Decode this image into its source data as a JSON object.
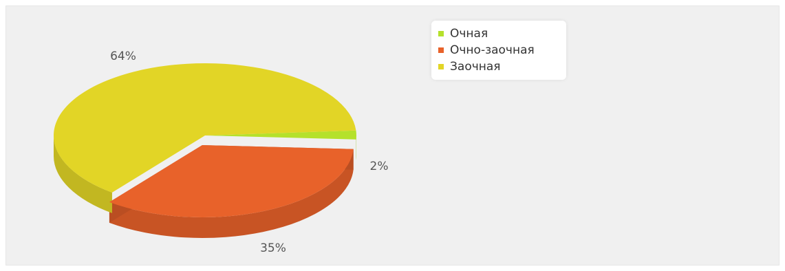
{
  "chart_data": {
    "type": "pie",
    "title": "",
    "three_d": true,
    "slices": [
      {
        "name": "Очная",
        "value": 2,
        "label": "2%",
        "color": "#b5e12b"
      },
      {
        "name": "Очно-заочная",
        "value": 35,
        "label": "35%",
        "color": "#e8622a"
      },
      {
        "name": "Заочная",
        "value": 64,
        "label": "64%",
        "color": "#e2d526"
      }
    ],
    "legend": {
      "position": "top-right",
      "items": [
        "Очная",
        "Очно-заочная",
        "Заочная"
      ]
    }
  },
  "colors": {
    "background": "#f0f0f0",
    "label_text": "#555555",
    "legend_text": "#333333"
  }
}
